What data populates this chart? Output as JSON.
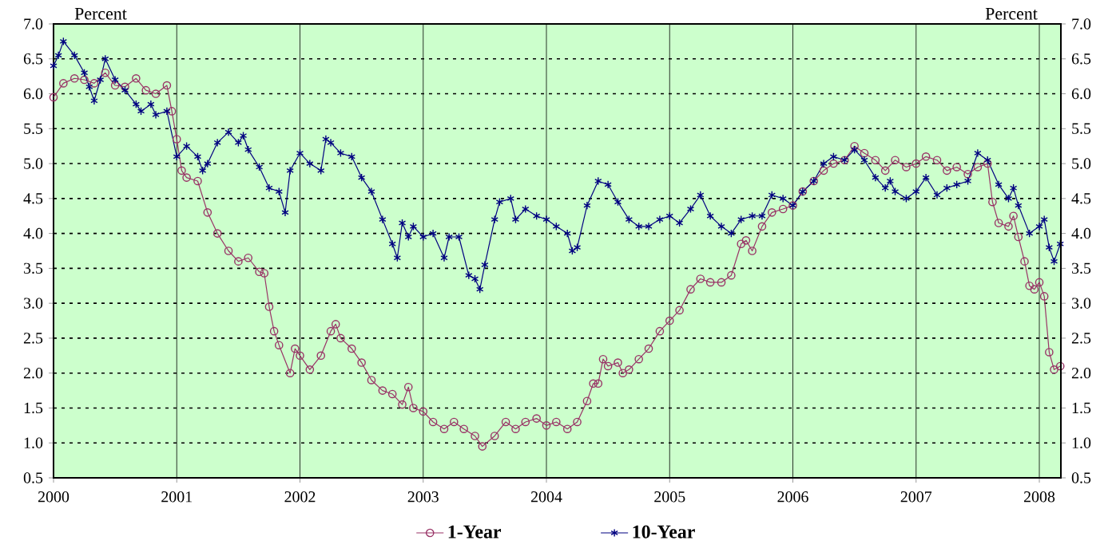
{
  "chart_data": {
    "type": "line",
    "ylabel": "Percent",
    "y2label": "Percent",
    "xlim": [
      2000,
      2008.175
    ],
    "xticks": [
      2000,
      2001,
      2002,
      2003,
      2004,
      2005,
      2006,
      2007,
      2008
    ],
    "ylim": [
      0.5,
      7.0
    ],
    "yticks": [
      {
        "value": 0.5,
        "label": "0.5"
      },
      {
        "value": 1,
        "label": "1.0"
      },
      {
        "value": 1.5,
        "label": "1.5"
      },
      {
        "value": 2,
        "label": "2.0"
      },
      {
        "value": 2.5,
        "label": "2.5"
      },
      {
        "value": 3,
        "label": "3.0"
      },
      {
        "value": 3.5,
        "label": "3.5"
      },
      {
        "value": 4,
        "label": "4.0"
      },
      {
        "value": 4.5,
        "label": "4.5"
      },
      {
        "value": 5,
        "label": "5.0"
      },
      {
        "value": 5.5,
        "label": "5.5"
      },
      {
        "value": 6,
        "label": "6.0"
      },
      {
        "value": 6.5,
        "label": "6.5"
      },
      {
        "value": 7,
        "label": "7.0"
      }
    ],
    "y2lim": [
      0.5,
      7.0
    ],
    "y2ticks": [
      {
        "value": 0.5,
        "label": "0.5"
      },
      {
        "value": 1,
        "label": "1.0"
      },
      {
        "value": 1.5,
        "label": "1.5"
      },
      {
        "value": 2,
        "label": "2.0"
      },
      {
        "value": 2.5,
        "label": "2.5"
      },
      {
        "value": 3,
        "label": "3.0"
      },
      {
        "value": 3.5,
        "label": "3.5"
      },
      {
        "value": 4,
        "label": "4.0"
      },
      {
        "value": 4.5,
        "label": "4.5"
      },
      {
        "value": 5,
        "label": "5.0"
      },
      {
        "value": 5.5,
        "label": "5.5"
      },
      {
        "value": 6,
        "label": "6.0"
      },
      {
        "value": 6.5,
        "label": "6.5"
      },
      {
        "value": 7,
        "label": "7.0"
      }
    ],
    "grid": true,
    "legend": "bottom",
    "line_style": "solid",
    "series": [
      {
        "name": "1-Year",
        "color": "#993366",
        "marker": "circle",
        "x": [
          2000.0,
          2000.08,
          2000.17,
          2000.25,
          2000.33,
          2000.42,
          2000.5,
          2000.58,
          2000.67,
          2000.75,
          2000.83,
          2000.92,
          2000.96,
          2001.0,
          2001.04,
          2001.08,
          2001.17,
          2001.25,
          2001.33,
          2001.42,
          2001.5,
          2001.58,
          2001.67,
          2001.71,
          2001.75,
          2001.79,
          2001.83,
          2001.92,
          2001.96,
          2002.0,
          2002.08,
          2002.17,
          2002.25,
          2002.29,
          2002.33,
          2002.42,
          2002.5,
          2002.58,
          2002.67,
          2002.75,
          2002.83,
          2002.88,
          2002.92,
          2003.0,
          2003.08,
          2003.17,
          2003.25,
          2003.33,
          2003.42,
          2003.48,
          2003.58,
          2003.67,
          2003.75,
          2003.83,
          2003.92,
          2004.0,
          2004.08,
          2004.17,
          2004.25,
          2004.33,
          2004.38,
          2004.42,
          2004.46,
          2004.5,
          2004.58,
          2004.62,
          2004.67,
          2004.75,
          2004.83,
          2004.92,
          2005.0,
          2005.08,
          2005.17,
          2005.25,
          2005.33,
          2005.42,
          2005.5,
          2005.58,
          2005.62,
          2005.67,
          2005.75,
          2005.83,
          2005.92,
          2006.0,
          2006.08,
          2006.17,
          2006.25,
          2006.33,
          2006.42,
          2006.5,
          2006.58,
          2006.67,
          2006.75,
          2006.83,
          2006.92,
          2007.0,
          2007.08,
          2007.17,
          2007.25,
          2007.33,
          2007.42,
          2007.5,
          2007.58,
          2007.62,
          2007.67,
          2007.75,
          2007.79,
          2007.83,
          2007.88,
          2007.92,
          2007.96,
          2008.0,
          2008.04,
          2008.08,
          2008.12,
          2008.17
        ],
        "values": [
          5.95,
          6.15,
          6.22,
          6.2,
          6.15,
          6.3,
          6.12,
          6.1,
          6.22,
          6.05,
          6.0,
          6.12,
          5.75,
          5.35,
          4.9,
          4.8,
          4.75,
          4.3,
          4.0,
          3.75,
          3.6,
          3.65,
          3.45,
          3.43,
          2.95,
          2.6,
          2.4,
          2.0,
          2.35,
          2.25,
          2.05,
          2.25,
          2.6,
          2.7,
          2.5,
          2.35,
          2.15,
          1.9,
          1.75,
          1.7,
          1.55,
          1.8,
          1.5,
          1.45,
          1.3,
          1.2,
          1.3,
          1.2,
          1.1,
          0.95,
          1.1,
          1.3,
          1.2,
          1.3,
          1.35,
          1.25,
          1.3,
          1.2,
          1.3,
          1.6,
          1.85,
          1.85,
          2.2,
          2.1,
          2.15,
          2.0,
          2.05,
          2.2,
          2.35,
          2.6,
          2.75,
          2.9,
          3.2,
          3.35,
          3.3,
          3.3,
          3.4,
          3.85,
          3.9,
          3.75,
          4.1,
          4.3,
          4.35,
          4.4,
          4.6,
          4.75,
          4.9,
          5.0,
          5.05,
          5.25,
          5.15,
          5.05,
          4.9,
          5.05,
          4.95,
          5.0,
          5.1,
          5.05,
          4.9,
          4.95,
          4.85,
          4.95,
          5.0,
          4.45,
          4.15,
          4.1,
          4.25,
          3.95,
          3.6,
          3.25,
          3.2,
          3.3,
          3.1,
          2.3,
          2.05,
          2.1
        ]
      },
      {
        "name": "10-Year",
        "color": "#000080",
        "marker": "cross",
        "x": [
          2000.0,
          2000.04,
          2000.08,
          2000.17,
          2000.25,
          2000.29,
          2000.33,
          2000.38,
          2000.42,
          2000.5,
          2000.58,
          2000.67,
          2000.71,
          2000.79,
          2000.83,
          2000.92,
          2001.0,
          2001.08,
          2001.17,
          2001.21,
          2001.25,
          2001.33,
          2001.42,
          2001.5,
          2001.54,
          2001.58,
          2001.67,
          2001.75,
          2001.83,
          2001.88,
          2001.92,
          2002.0,
          2002.08,
          2002.17,
          2002.21,
          2002.25,
          2002.33,
          2002.42,
          2002.5,
          2002.58,
          2002.67,
          2002.75,
          2002.79,
          2002.83,
          2002.88,
          2002.92,
          2003.0,
          2003.08,
          2003.17,
          2003.21,
          2003.29,
          2003.37,
          2003.42,
          2003.46,
          2003.5,
          2003.58,
          2003.62,
          2003.71,
          2003.75,
          2003.83,
          2003.92,
          2004.0,
          2004.08,
          2004.17,
          2004.21,
          2004.25,
          2004.33,
          2004.42,
          2004.5,
          2004.58,
          2004.67,
          2004.75,
          2004.83,
          2004.92,
          2005.0,
          2005.08,
          2005.17,
          2005.25,
          2005.33,
          2005.42,
          2005.5,
          2005.58,
          2005.67,
          2005.75,
          2005.83,
          2005.92,
          2006.0,
          2006.08,
          2006.17,
          2006.25,
          2006.33,
          2006.42,
          2006.5,
          2006.58,
          2006.67,
          2006.75,
          2006.79,
          2006.83,
          2006.92,
          2007.0,
          2007.08,
          2007.17,
          2007.25,
          2007.33,
          2007.42,
          2007.5,
          2007.58,
          2007.67,
          2007.75,
          2007.79,
          2007.83,
          2007.92,
          2008.0,
          2008.04,
          2008.08,
          2008.12,
          2008.17
        ],
        "values": [
          6.4,
          6.55,
          6.75,
          6.55,
          6.3,
          6.1,
          5.9,
          6.2,
          6.5,
          6.2,
          6.05,
          5.85,
          5.75,
          5.85,
          5.7,
          5.75,
          5.1,
          5.25,
          5.1,
          4.9,
          5.0,
          5.3,
          5.45,
          5.3,
          5.4,
          5.2,
          4.95,
          4.65,
          4.6,
          4.3,
          4.9,
          5.15,
          5.0,
          4.9,
          5.35,
          5.3,
          5.15,
          5.1,
          4.8,
          4.6,
          4.2,
          3.85,
          3.65,
          4.15,
          3.95,
          4.1,
          3.95,
          4.0,
          3.65,
          3.95,
          3.95,
          3.4,
          3.35,
          3.2,
          3.55,
          4.2,
          4.45,
          4.5,
          4.2,
          4.35,
          4.25,
          4.2,
          4.1,
          4.0,
          3.75,
          3.8,
          4.4,
          4.75,
          4.7,
          4.45,
          4.2,
          4.1,
          4.1,
          4.2,
          4.25,
          4.15,
          4.35,
          4.55,
          4.25,
          4.1,
          4.0,
          4.2,
          4.25,
          4.25,
          4.55,
          4.5,
          4.4,
          4.6,
          4.75,
          5.0,
          5.1,
          5.05,
          5.2,
          5.05,
          4.8,
          4.65,
          4.75,
          4.6,
          4.5,
          4.6,
          4.8,
          4.55,
          4.65,
          4.7,
          4.75,
          5.15,
          5.05,
          4.7,
          4.5,
          4.65,
          4.4,
          4.0,
          4.1,
          4.2,
          3.8,
          3.6,
          3.85
        ]
      }
    ]
  }
}
